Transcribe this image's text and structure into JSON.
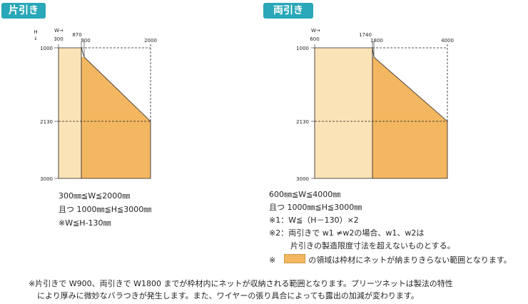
{
  "left": {
    "badge": "片引き",
    "w_arrow": "W→",
    "h_label": "H",
    "h_arrow": "↓",
    "x_ticks": [
      "300",
      "870",
      "900",
      "2000"
    ],
    "y_ticks": [
      "1000",
      "2130",
      "3000"
    ],
    "conditions": [
      "300㎜≦W≦2000㎜",
      "且つ 1000㎜≦H≦3000㎜",
      "※W≦H-130㎜"
    ]
  },
  "right": {
    "badge": "両引き",
    "w_arrow": "W→",
    "x_ticks": [
      "600",
      "1740",
      "1800",
      "4000"
    ],
    "y_ticks": [
      "1000",
      "2130",
      "3000"
    ],
    "conditions": [
      "600㎜≦W≦4000㎜",
      "且つ 1000㎜≦H≦3000㎜",
      "※1：W≦（H－130）×2",
      "※2：両引きで w1 ≠w2の場合、w1、w2は",
      "片引きの製造限度寸法を超えないものとする。"
    ],
    "legend_mark": "※",
    "legend_text": "の領域は枠材にネットが納まりきらない範囲となります。"
  },
  "footnote": [
    "※片引きで W900、両引きで W1800 までが枠材内にネットが収納される範囲となります。プリーツネットは製法の特性",
    "により厚みに微妙なバラつきが発生します。また、ワイヤーの張り具合によっても露出の加減が変わります。"
  ],
  "colors": {
    "light_region": "#fbe3b8",
    "dark_region": "#f3b761",
    "badge": "#2aa7b8"
  }
}
